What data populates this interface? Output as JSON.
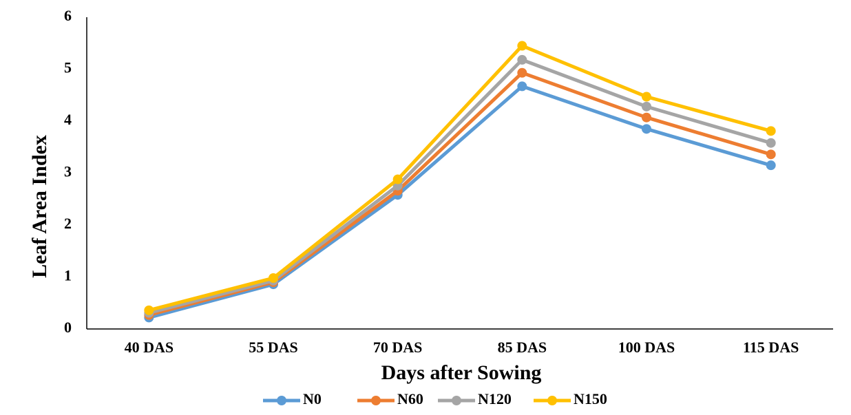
{
  "chart_data": {
    "type": "line",
    "title": "",
    "xlabel": "Days after Sowing",
    "ylabel": "Leaf Area Index",
    "categories": [
      "40 DAS",
      "55 DAS",
      "70 DAS",
      "85 DAS",
      "100 DAS",
      "115 DAS"
    ],
    "ylim": [
      0,
      6
    ],
    "yticks": [
      "0",
      "1",
      "2",
      "3",
      "4",
      "5",
      "6"
    ],
    "grid": false,
    "legend_position": "bottom",
    "series": [
      {
        "name": "N0",
        "color": "#5B9BD5",
        "values": [
          0.22,
          0.86,
          2.58,
          4.67,
          3.85,
          3.15
        ]
      },
      {
        "name": "N60",
        "color": "#ED7D31",
        "values": [
          0.27,
          0.9,
          2.66,
          4.93,
          4.07,
          3.36
        ]
      },
      {
        "name": "N120",
        "color": "#A5A5A5",
        "values": [
          0.31,
          0.93,
          2.76,
          5.18,
          4.28,
          3.58
        ]
      },
      {
        "name": "N150",
        "color": "#FFC000",
        "values": [
          0.36,
          0.98,
          2.88,
          5.45,
          4.47,
          3.81
        ]
      }
    ]
  }
}
